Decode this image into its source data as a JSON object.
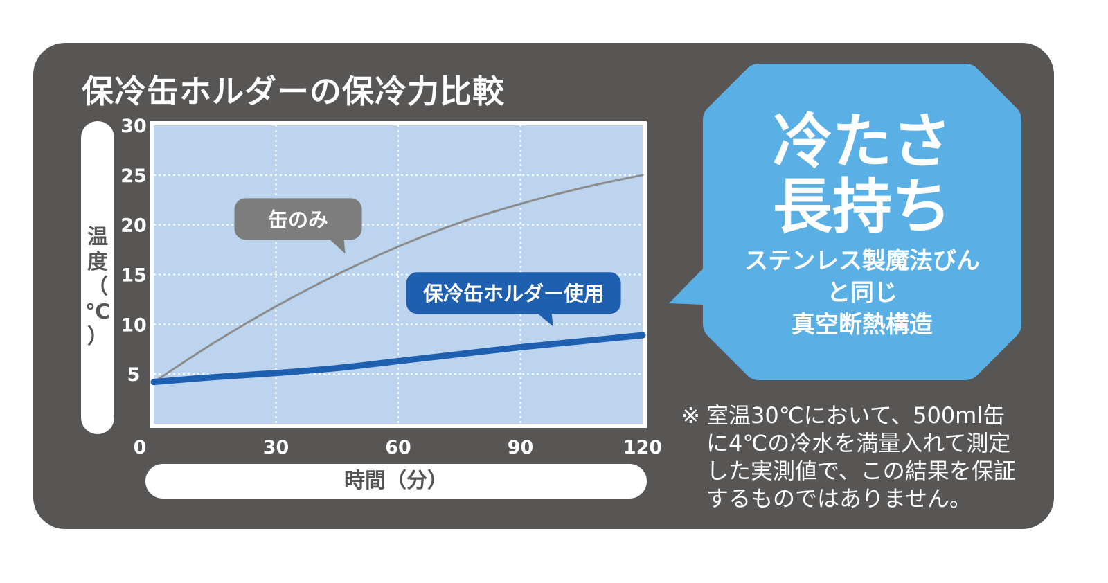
{
  "title": "保冷缶ホルダーの保冷力比較",
  "chart_data": {
    "type": "line",
    "xlabel": "時間（分）",
    "ylabel": "温度（℃）",
    "xlim": [
      0,
      120
    ],
    "ylim": [
      0,
      30
    ],
    "x_ticks": [
      0,
      30,
      60,
      90,
      120
    ],
    "y_ticks": [
      5,
      10,
      15,
      20,
      25,
      30
    ],
    "y_origin_label": "0",
    "grid": true,
    "background": "#bcd4ee",
    "series": [
      {
        "name": "缶のみ",
        "color": "#8c8c8c",
        "label_fill": "#7d7d7d",
        "x": [
          0,
          15,
          30,
          45,
          60,
          75,
          90,
          105,
          120
        ],
        "y": [
          4.2,
          8.2,
          11.8,
          15.0,
          17.8,
          20.2,
          22.1,
          23.7,
          25.0
        ]
      },
      {
        "name": "保冷缶ホルダー使用",
        "color": "#1f5fb0",
        "label_fill": "#1f5fb0",
        "x": [
          0,
          15,
          30,
          45,
          60,
          75,
          90,
          105,
          120
        ],
        "y": [
          4.2,
          4.7,
          5.1,
          5.6,
          6.3,
          7.0,
          7.7,
          8.3,
          8.9
        ]
      }
    ]
  },
  "callout": {
    "headline": "冷たさ\n長持ち",
    "subtext": "ステンレス製魔法びん\nと同じ\n真空断熱構造",
    "color": "#5aafe4"
  },
  "note": {
    "mark": "※",
    "text": "室温30℃において、500ml缶\nに4℃の冷水を満量入れて測定\nした実測値で、この結果を保証\nするものではありません。"
  }
}
